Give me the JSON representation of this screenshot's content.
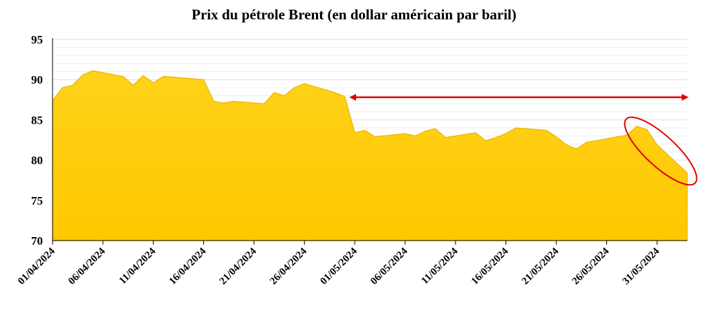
{
  "chart_data": {
    "type": "area",
    "title": "Prix du pétrole Brent (en dollar américain par baril)",
    "xlabel": "",
    "ylabel": "",
    "ylim": [
      70,
      95
    ],
    "yticks": [
      70,
      75,
      80,
      85,
      90,
      95
    ],
    "xtick_labels": [
      "01/04/2024",
      "06/04/2024",
      "11/04/2024",
      "16/04/2024",
      "21/04/2024",
      "26/04/2024",
      "01/05/2024",
      "06/05/2024",
      "11/05/2024",
      "16/05/2024",
      "21/05/2024",
      "26/05/2024",
      "31/05/2024"
    ],
    "grid": true,
    "legend": "none",
    "fill_color": "#FFCC00",
    "annotation_color": "#E00000",
    "series": [
      {
        "x": [
          "01/04/2024",
          "02/04/2024",
          "03/04/2024",
          "04/04/2024",
          "05/04/2024",
          "08/04/2024",
          "09/04/2024",
          "10/04/2024",
          "11/04/2024",
          "12/04/2024",
          "15/04/2024",
          "16/04/2024",
          "17/04/2024",
          "18/04/2024",
          "19/04/2024",
          "22/04/2024",
          "23/04/2024",
          "24/04/2024",
          "25/04/2024",
          "26/04/2024",
          "29/04/2024",
          "30/04/2024",
          "01/05/2024",
          "02/05/2024",
          "03/05/2024",
          "06/05/2024",
          "07/05/2024",
          "08/05/2024",
          "09/05/2024",
          "10/05/2024",
          "13/05/2024",
          "14/05/2024",
          "15/05/2024",
          "16/05/2024",
          "17/05/2024",
          "20/05/2024",
          "21/05/2024",
          "22/05/2024",
          "23/05/2024",
          "24/05/2024",
          "28/05/2024",
          "29/05/2024",
          "30/05/2024",
          "31/05/2024",
          "03/06/2024"
        ],
        "values": [
          87.4,
          89.0,
          89.3,
          90.6,
          91.1,
          90.4,
          89.3,
          90.5,
          89.6,
          90.4,
          90.1,
          90.0,
          87.3,
          87.1,
          87.3,
          87.0,
          88.4,
          88.0,
          89.0,
          89.5,
          88.4,
          87.9,
          83.4,
          83.7,
          82.9,
          83.3,
          83.0,
          83.6,
          83.9,
          82.8,
          83.4,
          82.4,
          82.8,
          83.3,
          84.0,
          83.7,
          82.9,
          81.9,
          81.4,
          82.2,
          83.1,
          84.2,
          83.8,
          81.9,
          78.4
        ]
      }
    ],
    "annotations": [
      {
        "type": "double-arrow",
        "from": "01/05/2024",
        "to": "03/06/2024",
        "y": 87.8
      },
      {
        "type": "ellipse",
        "around": "29/05/2024 – 03/06/2024"
      }
    ]
  }
}
